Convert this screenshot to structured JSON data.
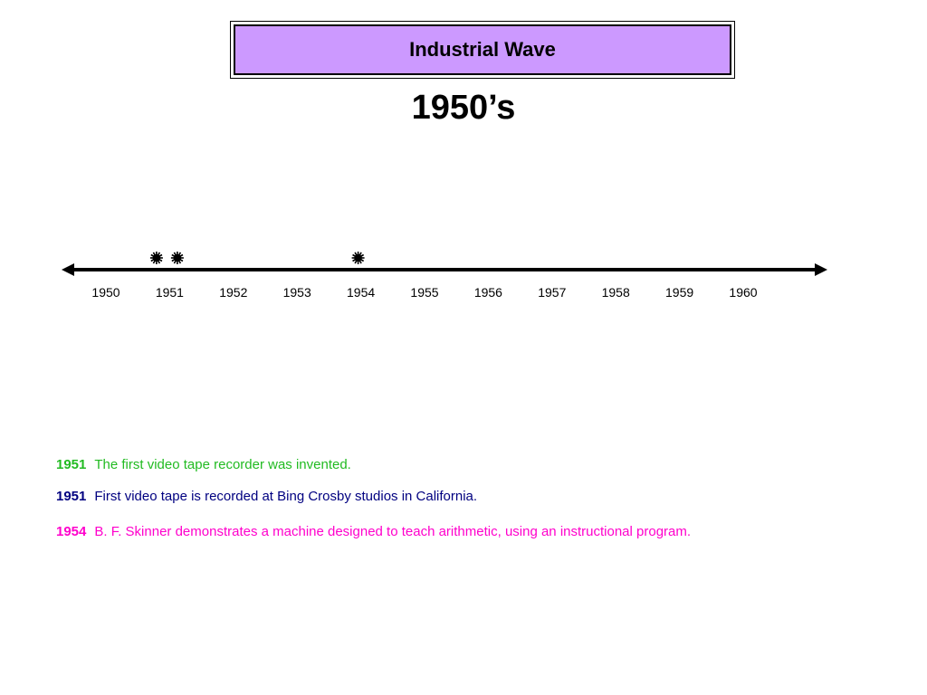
{
  "title": "Industrial Wave",
  "decade": "1950’s",
  "colors": {
    "title_fill": "#cc99ff",
    "event_1951_a": "#22bb22",
    "event_1951_b": "#000080",
    "event_1954": "#ff00cc"
  },
  "chart_data": {
    "type": "timeline",
    "years": [
      "1950",
      "1951",
      "1952",
      "1953",
      "1954",
      "1955",
      "1956",
      "1957",
      "1958",
      "1959",
      "1960"
    ],
    "markers": [
      {
        "year": 1951,
        "icon": "sunburst-icon"
      },
      {
        "year": 1951,
        "icon": "sunburst-icon"
      },
      {
        "year": 1954,
        "icon": "sunburst-icon"
      }
    ]
  },
  "events": [
    {
      "year": "1951",
      "text": "The first video tape recorder was invented."
    },
    {
      "year": "1951",
      "text": "First video tape is recorded at Bing Crosby studios in California."
    },
    {
      "year": "1954",
      "text": "B. F. Skinner demonstrates a machine designed to teach arithmetic, using an instructional program."
    }
  ]
}
